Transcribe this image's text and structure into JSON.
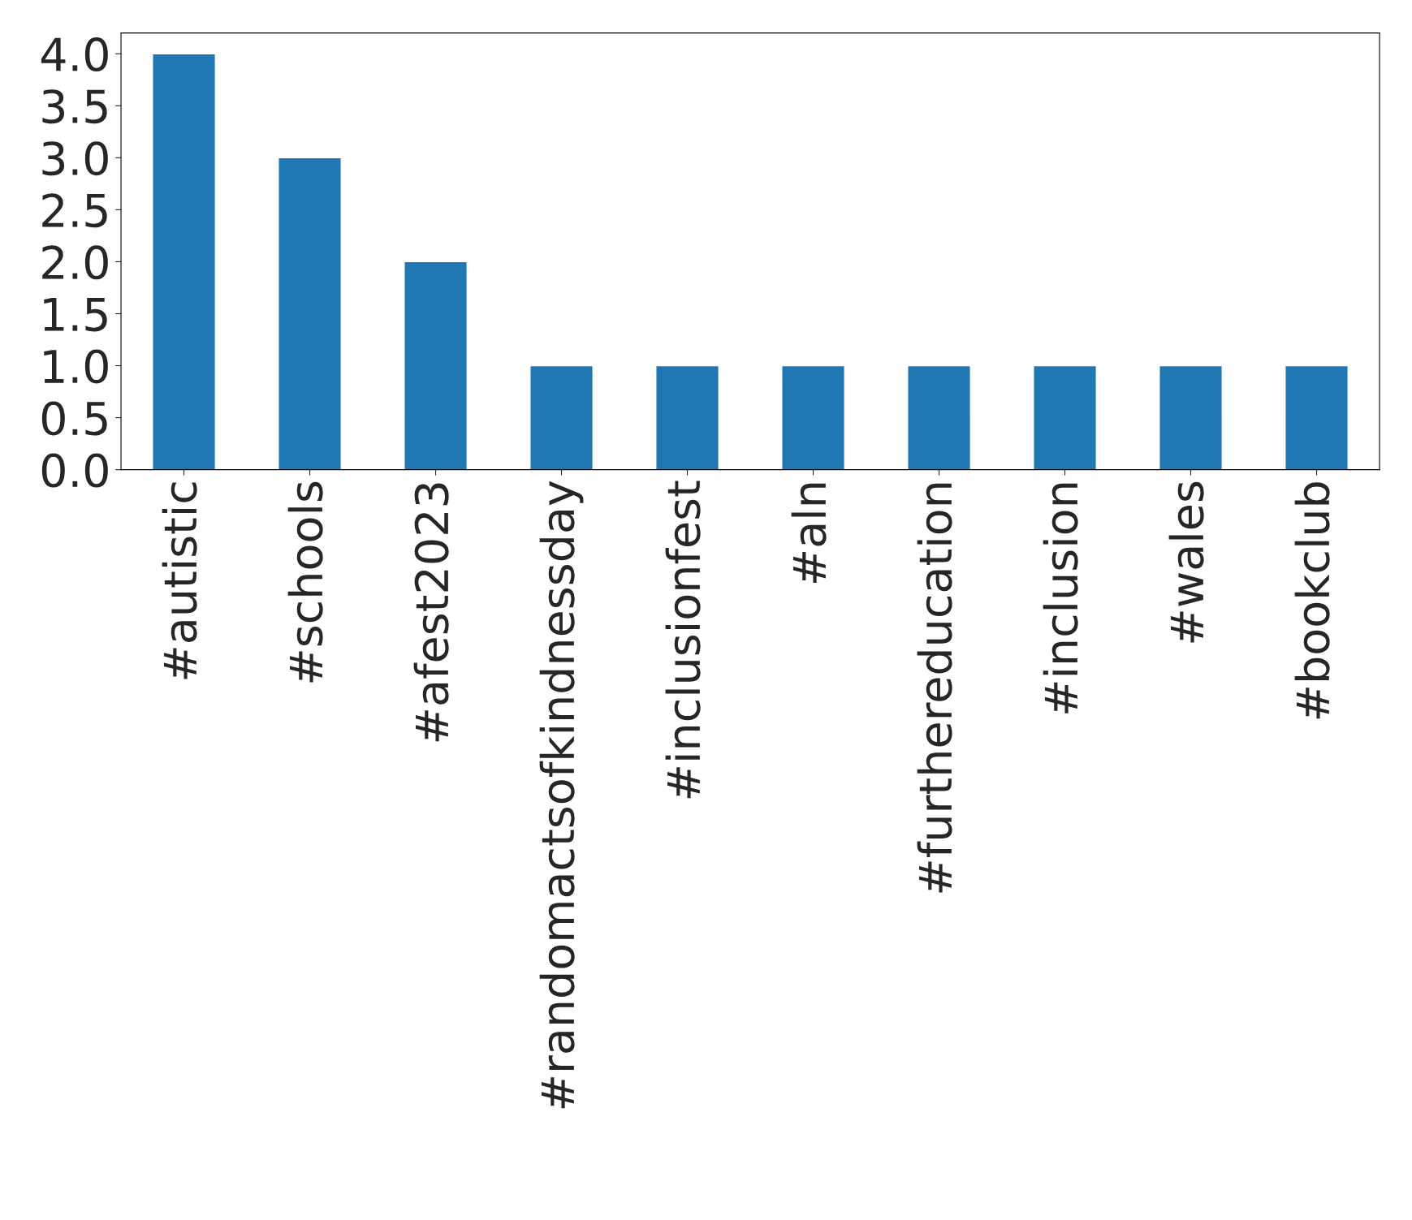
{
  "chart_data": {
    "type": "bar",
    "categories": [
      "#autistic",
      "#schools",
      "#afest2023",
      "#randomactsofkindnessday",
      "#inclusionfest",
      "#aln",
      "#furthereducation",
      "#inclusion",
      "#wales",
      "#bookclub"
    ],
    "values": [
      4,
      3,
      2,
      1,
      1,
      1,
      1,
      1,
      1,
      1
    ],
    "color": "#1f77b4",
    "ylim": [
      0,
      4.2
    ],
    "yticks": [
      {
        "value": 0,
        "label": "0.0"
      },
      {
        "value": 0.5,
        "label": "0.5"
      },
      {
        "value": 1,
        "label": "1.0"
      },
      {
        "value": 1.5,
        "label": "1.5"
      },
      {
        "value": 2,
        "label": "2.0"
      },
      {
        "value": 2.5,
        "label": "2.5"
      },
      {
        "value": 3,
        "label": "3.0"
      },
      {
        "value": 3.5,
        "label": "3.5"
      },
      {
        "value": 4,
        "label": "4.0"
      }
    ],
    "grid": false,
    "legend": false
  }
}
